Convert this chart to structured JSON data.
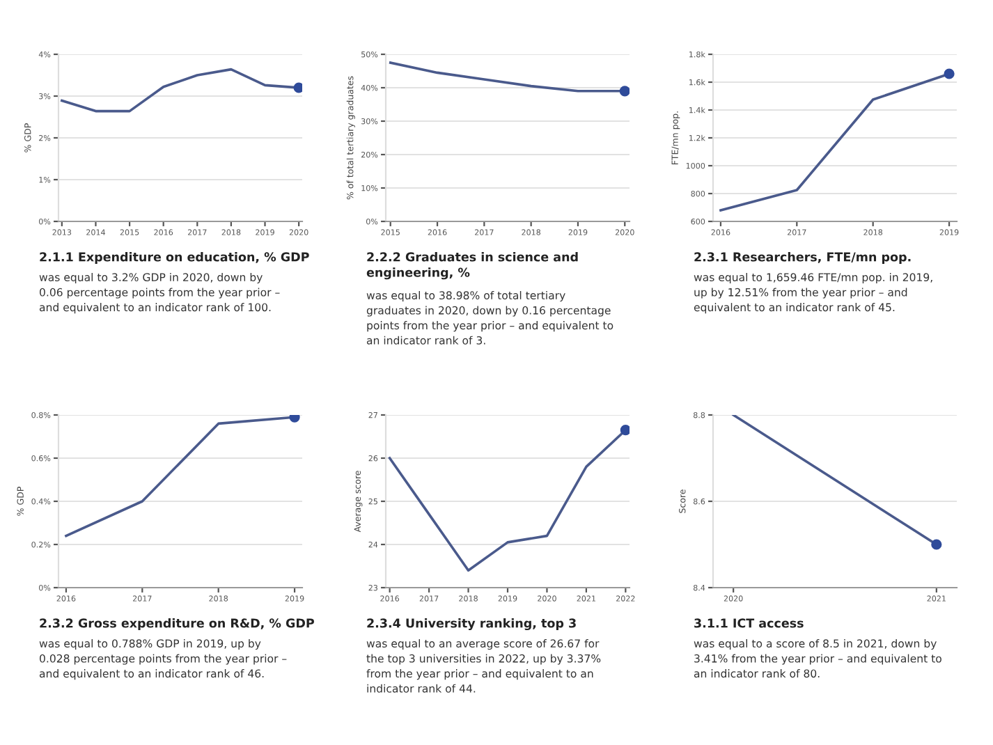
{
  "chart_data": [
    {
      "type": "line",
      "title": "2.1.1 Expenditure on education, % GDP",
      "ylabel": "% GDP",
      "categories": [
        "2013",
        "2014",
        "2015",
        "2016",
        "2017",
        "2018",
        "2019",
        "2020"
      ],
      "series": [
        {
          "color": "#4a5a8c",
          "values": [
            2.89,
            2.64,
            2.64,
            3.22,
            3.5,
            3.64,
            3.26,
            3.2
          ]
        },
        {
          "type": "scatter",
          "color": "#2f4b9a",
          "values": [
            null,
            null,
            null,
            null,
            null,
            null,
            null,
            3.2
          ]
        }
      ],
      "ylim": [
        0,
        4
      ],
      "yticks": [
        {
          "value": 0,
          "label": "0%"
        },
        {
          "value": 1,
          "label": "1%"
        },
        {
          "value": 2,
          "label": "2%"
        },
        {
          "value": 3,
          "label": "3%"
        },
        {
          "value": 4,
          "label": "4%"
        }
      ],
      "grid": "y",
      "annotations": [
        "was equal to 3.2% GDP in 2020, down by\n0.06 percentage points from the year prior –\nand equivalent to an indicator rank of 100."
      ]
    },
    {
      "type": "line",
      "title": "2.2.2 Graduates in science and\nengineering, %",
      "ylabel": "% of total tertiary graduates",
      "categories": [
        "2015",
        "2016",
        "2017",
        "2018",
        "2019",
        "2020"
      ],
      "series": [
        {
          "color": "#4a5a8c",
          "values": [
            47.5,
            44.5,
            42.5,
            40.5,
            39,
            39
          ]
        },
        {
          "type": "scatter",
          "color": "#2f4b9a",
          "values": [
            null,
            null,
            null,
            null,
            null,
            39
          ]
        }
      ],
      "ylim": [
        0,
        50
      ],
      "yticks": [
        {
          "value": 0,
          "label": "0%"
        },
        {
          "value": 10,
          "label": "10%"
        },
        {
          "value": 20,
          "label": "20%"
        },
        {
          "value": 30,
          "label": "30%"
        },
        {
          "value": 40,
          "label": "40%"
        },
        {
          "value": 50,
          "label": "50%"
        }
      ],
      "grid": "y",
      "annotations": [
        "was equal to 38.98% of total tertiary\ngraduates in 2020, down by 0.16 percentage\npoints from the year prior – and equivalent to\nan indicator rank of 3."
      ]
    },
    {
      "type": "line",
      "title": "2.3.1 Researchers, FTE/mn pop.",
      "ylabel": "FTE/mn pop.",
      "categories": [
        "2016",
        "2017",
        "2018",
        "2019"
      ],
      "series": [
        {
          "color": "#4a5a8c",
          "values": [
            680,
            825,
            1475,
            1660
          ]
        },
        {
          "type": "scatter",
          "color": "#2f4b9a",
          "values": [
            null,
            null,
            null,
            1660
          ]
        }
      ],
      "ylim": [
        600,
        1800
      ],
      "yticks": [
        600,
        800,
        1000,
        {
          "value": 1200,
          "label": "1.2k"
        },
        {
          "value": 1400,
          "label": "1.4k"
        },
        {
          "value": 1600,
          "label": "1.6k"
        },
        {
          "value": 1800,
          "label": "1.8k"
        }
      ],
      "grid": "y",
      "annotations": [
        "was equal to 1,659.46 FTE/mn pop. in 2019,\nup by 12.51% from the year prior – and\nequivalent to an indicator rank of 45."
      ]
    },
    {
      "type": "line",
      "title": "2.3.2 Gross expenditure on R&D, % GDP",
      "ylabel": "% GDP",
      "categories": [
        "2016",
        "2017",
        "2018",
        "2019"
      ],
      "series": [
        {
          "color": "#4a5a8c",
          "values": [
            0.24,
            0.4,
            0.76,
            0.79
          ]
        },
        {
          "type": "scatter",
          "color": "#2f4b9a",
          "values": [
            null,
            null,
            null,
            0.79
          ]
        }
      ],
      "ylim": [
        0,
        0.8
      ],
      "yticks": [
        {
          "value": 0,
          "label": "0%"
        },
        {
          "value": 0.2,
          "label": "0.2%"
        },
        {
          "value": 0.4,
          "label": "0.4%"
        },
        {
          "value": 0.6,
          "label": "0.6%"
        },
        {
          "value": 0.8,
          "label": "0.8%"
        }
      ],
      "grid": "y",
      "annotations": [
        "was equal to 0.788% GDP in 2019, up by\n0.028 percentage points from the year prior –\nand equivalent to an indicator rank of 46."
      ]
    },
    {
      "type": "line",
      "title": "2.3.4 University ranking, top 3",
      "ylabel": "Average score",
      "categories": [
        "2016",
        "2017",
        "2018",
        "2019",
        "2020",
        "2021",
        "2022"
      ],
      "series": [
        {
          "color": "#4a5a8c",
          "values": [
            26.0,
            24.7,
            23.4,
            24.05,
            24.2,
            25.8,
            26.65
          ]
        },
        {
          "type": "scatter",
          "color": "#2f4b9a",
          "values": [
            null,
            null,
            null,
            null,
            null,
            null,
            26.65
          ]
        }
      ],
      "ylim": [
        23,
        27
      ],
      "yticks": [
        23,
        24,
        25,
        26,
        27
      ],
      "grid": "y",
      "annotations": [
        "was equal to an average score of 26.67 for\nthe top 3 universities in 2022, up by 3.37%\nfrom the year prior – and equivalent to an\nindicator rank of 44."
      ]
    },
    {
      "type": "line",
      "title": "3.1.1 ICT access",
      "ylabel": "Score",
      "categories": [
        "2020",
        "2021"
      ],
      "series": [
        {
          "color": "#4a5a8c",
          "values": [
            8.8,
            8.5
          ]
        },
        {
          "type": "scatter",
          "color": "#2f4b9a",
          "values": [
            null,
            8.5
          ]
        }
      ],
      "ylim": [
        8.4,
        8.8
      ],
      "yticks": [
        8.4,
        8.6,
        8.8
      ],
      "grid": "y",
      "annotations": [
        "was equal to a score of 8.5 in 2021, down by\n3.41% from the year prior – and equivalent to\nan indicator rank of 80."
      ]
    }
  ]
}
